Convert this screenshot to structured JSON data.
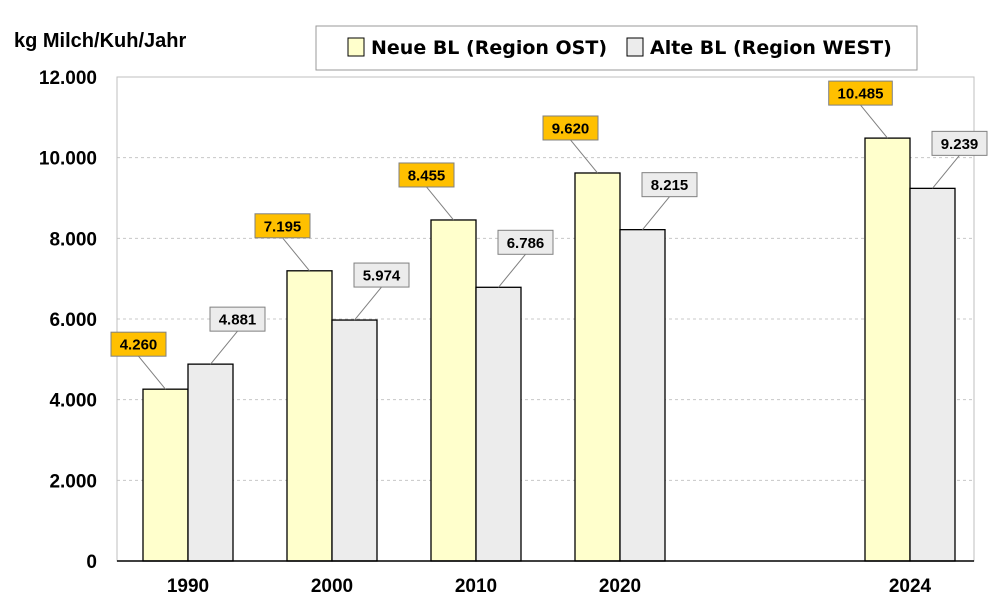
{
  "chart_data": {
    "type": "bar",
    "ylabel": "kg Milch/Kuh/Jahr",
    "categories": [
      "1990",
      "2000",
      "2010",
      "2020",
      "2024"
    ],
    "ylim": [
      0,
      12000
    ],
    "yticks": [
      "0",
      "2.000",
      "4.000",
      "6.000",
      "8.000",
      "10.000",
      "12.000"
    ],
    "grid": "horizontal dashed",
    "legend_position": "top",
    "series": [
      {
        "name": "Neue BL (Region OST)",
        "values": [
          4260,
          7195,
          8455,
          9620,
          10485
        ],
        "labels": [
          "4.260",
          "7.195",
          "8.455",
          "9.620",
          "10.485"
        ],
        "fill": "#ffffcc",
        "label_fill": "#ffc000"
      },
      {
        "name": "Alte BL (Region WEST)",
        "values": [
          4881,
          5974,
          6786,
          8215,
          9239
        ],
        "labels": [
          "4.881",
          "5.974",
          "6.786",
          "8.215",
          "9.239"
        ],
        "fill": "#ececec",
        "label_fill": "#ececec"
      }
    ]
  }
}
